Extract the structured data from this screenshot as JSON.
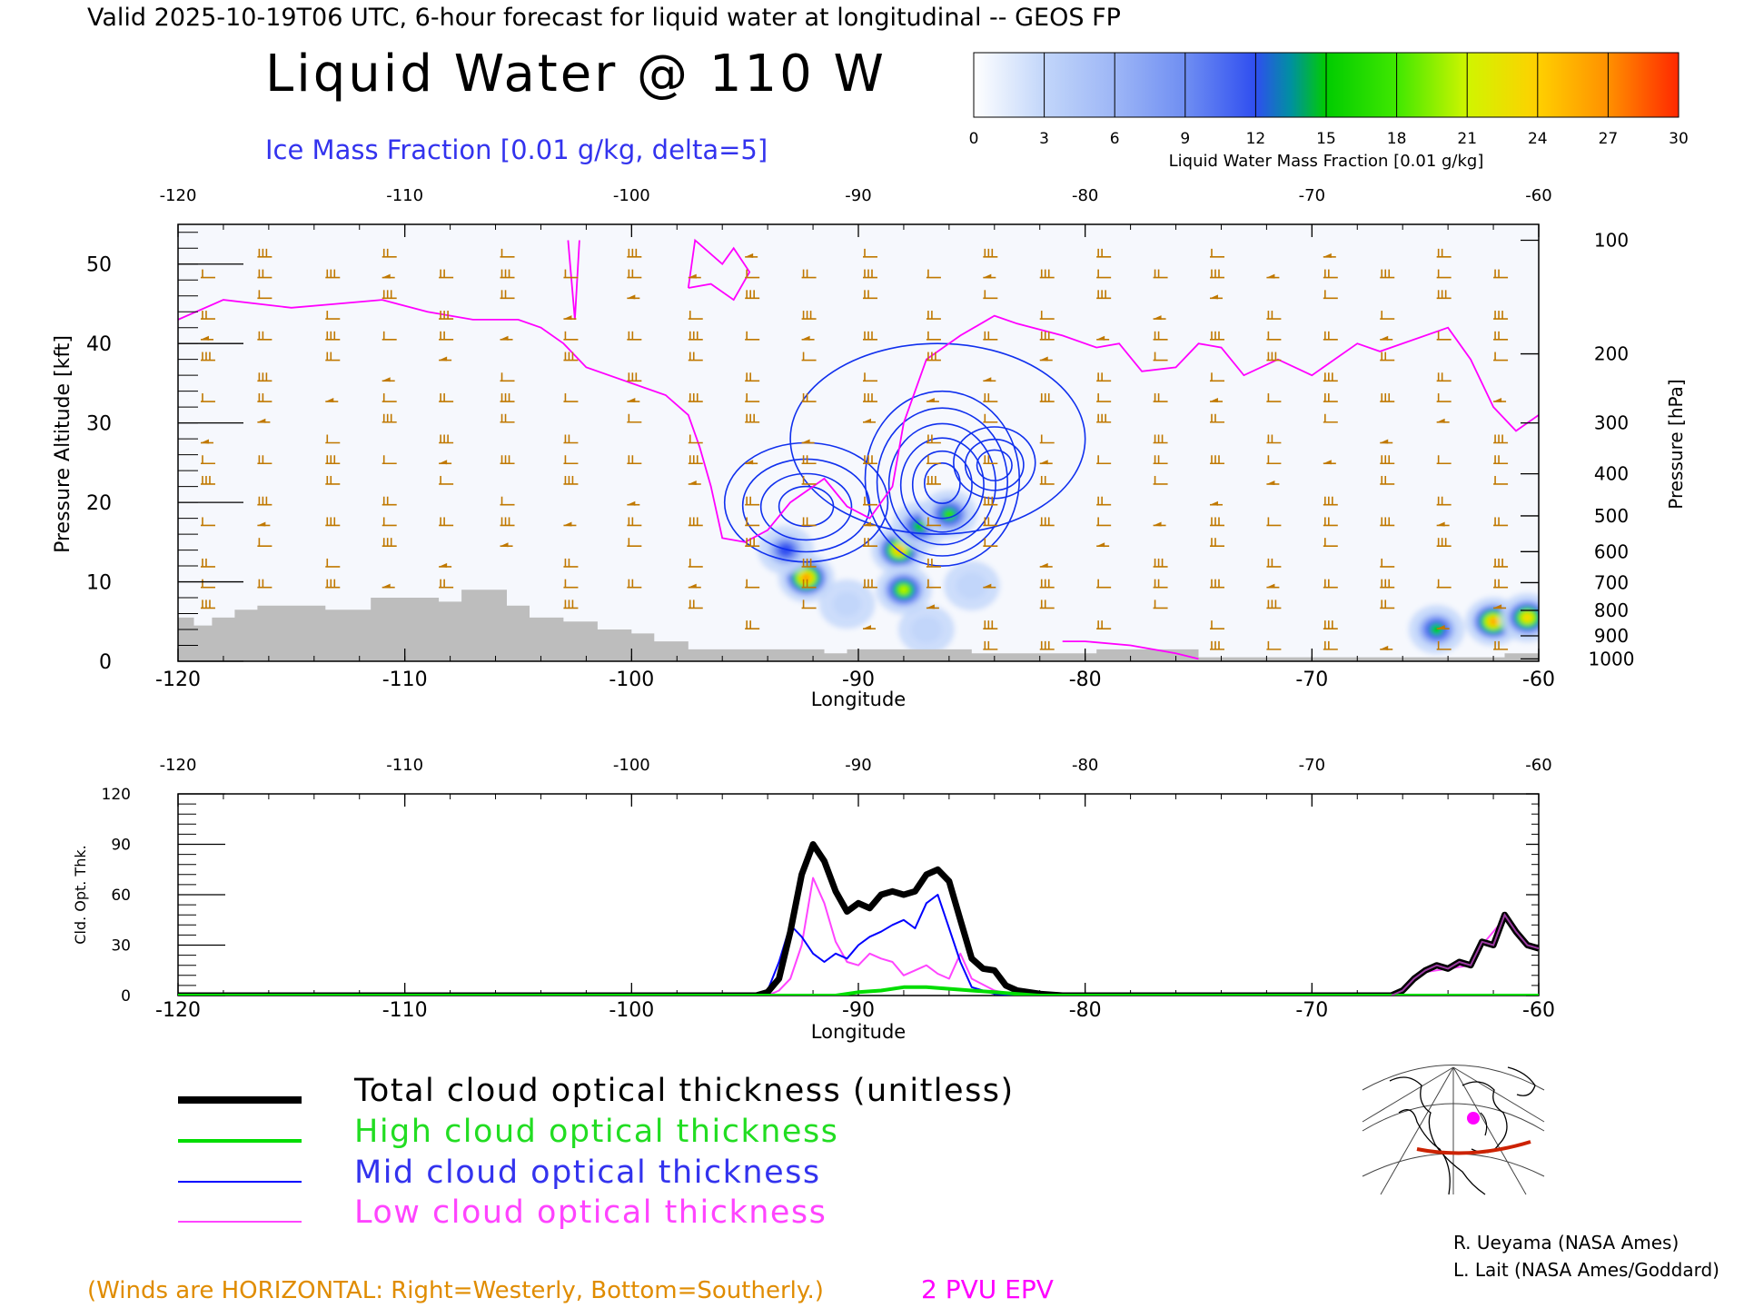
{
  "header": {
    "valid_line": "Valid 2025-10-19T06 UTC, 6-hour forecast for liquid water at longitudinal -- GEOS FP",
    "main_title": "Liquid Water @ 110 W",
    "ice_label": "Ice Mass Fraction [0.01 g/kg, delta=5]"
  },
  "colorbar": {
    "ticks": [
      "0",
      "3",
      "6",
      "9",
      "12",
      "15",
      "18",
      "21",
      "24",
      "27",
      "30"
    ],
    "label": "Liquid Water Mass Fraction [0.01 g/kg]",
    "colors": [
      "#f6f8fd",
      "#b8cff8",
      "#8aa6f3",
      "#5b78ee",
      "#2b4bf0",
      "#00a86a",
      "#00dd00",
      "#a8f000",
      "#f0f000",
      "#ffb400",
      "#ff3000"
    ]
  },
  "colors": {
    "wind_barb": "#c07800",
    "epv": "#ff00ff",
    "terrain": "#bbbbbb",
    "total": "#000000",
    "high": "#00dd00",
    "mid": "#0000ff",
    "low": "#ff44ff",
    "axis": "#000000",
    "terrain_fill": "#bdbdbd"
  },
  "chart_data": [
    {
      "type": "heatmap",
      "title": "Liquid Water @ 110 W",
      "xlabel": "Longitude",
      "ylabel": "Pressure Altitude [kft]",
      "ylabel_right": "Pressure [hPa]",
      "xlim": [
        -120,
        -60
      ],
      "ylim": [
        0,
        55
      ],
      "x_ticks": [
        "-120",
        "-110",
        "-100",
        "-90",
        "-80",
        "-70",
        "-60"
      ],
      "top_x_ticks": [
        "-120",
        "-110",
        "-100",
        "-90",
        "-80",
        "-70",
        "-60"
      ],
      "y_ticks": [
        "0",
        "10",
        "20",
        "30",
        "40",
        "50"
      ],
      "right_ticks": [
        {
          "label": "100",
          "kft": 53
        },
        {
          "label": "200",
          "kft": 38.7
        },
        {
          "label": "300",
          "kft": 30
        },
        {
          "label": "400",
          "kft": 23.6
        },
        {
          "label": "500",
          "kft": 18.3
        },
        {
          "label": "600",
          "kft": 13.8
        },
        {
          "label": "700",
          "kft": 9.9
        },
        {
          "label": "800",
          "kft": 6.4
        },
        {
          "label": "900",
          "kft": 3.2
        },
        {
          "label": "1000",
          "kft": 0.3
        }
      ],
      "liquid_water_blobs": [
        {
          "lon": -92.3,
          "kft": 10.5,
          "peak": 29
        },
        {
          "lon": -93.2,
          "kft": 14,
          "peak": 14
        },
        {
          "lon": -88.2,
          "kft": 14,
          "peak": 27
        },
        {
          "lon": -87.3,
          "kft": 17,
          "peak": 17
        },
        {
          "lon": -86,
          "kft": 18.5,
          "peak": 18
        },
        {
          "lon": -88,
          "kft": 9,
          "peak": 22
        },
        {
          "lon": -85,
          "kft": 9.5,
          "peak": 5
        },
        {
          "lon": -87,
          "kft": 4,
          "peak": 5
        },
        {
          "lon": -90.5,
          "kft": 7.2,
          "peak": 4
        },
        {
          "lon": -62,
          "kft": 5,
          "peak": 28
        },
        {
          "lon": -64.5,
          "kft": 4,
          "peak": 17
        },
        {
          "lon": -60.5,
          "kft": 5.5,
          "peak": 26
        }
      ],
      "epv_2pvu_line": [
        [
          -120,
          43
        ],
        [
          -118,
          45.5
        ],
        [
          -115,
          44.5
        ],
        [
          -113,
          45
        ],
        [
          -111,
          45.5
        ],
        [
          -109,
          44
        ],
        [
          -107,
          43
        ],
        [
          -105,
          43
        ],
        [
          -104,
          42
        ],
        [
          -103,
          40
        ],
        [
          -102,
          37
        ],
        [
          -100,
          35
        ],
        [
          -98.5,
          33.5
        ],
        [
          -97.5,
          31
        ],
        [
          -97,
          27
        ],
        [
          -96.5,
          22
        ],
        [
          -96,
          15.5
        ],
        [
          -95,
          15
        ],
        [
          -94,
          16.5
        ],
        [
          -93,
          20
        ],
        [
          -92,
          22
        ],
        [
          -91.5,
          23
        ],
        [
          -90.5,
          19.5
        ],
        [
          -89.5,
          18
        ],
        [
          -88.5,
          22
        ],
        [
          -88,
          30
        ],
        [
          -87,
          38
        ],
        [
          -85.5,
          41
        ],
        [
          -84,
          43.5
        ],
        [
          -83,
          42.5
        ],
        [
          -81,
          41
        ],
        [
          -79.5,
          39.5
        ],
        [
          -78.5,
          40
        ],
        [
          -77.5,
          36.5
        ],
        [
          -76,
          37
        ],
        [
          -75,
          40
        ],
        [
          -74,
          39.5
        ],
        [
          -73,
          36
        ],
        [
          -71.5,
          38
        ],
        [
          -70,
          36
        ],
        [
          -68,
          40
        ],
        [
          -67,
          39
        ],
        [
          -64,
          42
        ],
        [
          -63,
          38
        ],
        [
          -62,
          32
        ],
        [
          -61,
          29
        ],
        [
          -60,
          31
        ]
      ],
      "epv_lower_line": [
        [
          -81,
          2.5
        ],
        [
          -80,
          2.5
        ],
        [
          -78,
          2
        ],
        [
          -76,
          1
        ],
        [
          -75,
          0.3
        ]
      ],
      "epv_spike_line": [
        [
          -102.8,
          53
        ],
        [
          -102.5,
          43
        ],
        [
          -102.3,
          53
        ]
      ],
      "epv_loop_line": [
        [
          -97.5,
          47
        ],
        [
          -97.2,
          53
        ],
        [
          -96,
          50
        ],
        [
          -95.5,
          52
        ],
        [
          -94.8,
          49
        ],
        [
          -95.5,
          45.5
        ],
        [
          -96.5,
          47.5
        ],
        [
          -97.5,
          47
        ]
      ],
      "ice_contours": [
        {
          "lon": -92.3,
          "kft": 20,
          "rx": 3.6,
          "ry": 7.5,
          "n": 4
        },
        {
          "lon": -86.3,
          "kft": 23,
          "rx": 3.4,
          "ry": 11,
          "n": 6
        },
        {
          "lon": -84,
          "kft": 25,
          "rx": 1.8,
          "ry": 4.5,
          "n": 3
        },
        {
          "lon": -86.5,
          "kft": 28,
          "rx": 6.5,
          "ry": 12,
          "n": 1
        }
      ],
      "terrain_profile": [
        [
          -120,
          5.5
        ],
        [
          -119.3,
          5.5
        ],
        [
          -119.3,
          4.5
        ],
        [
          -118.5,
          4.5
        ],
        [
          -118.5,
          5.5
        ],
        [
          -117.5,
          5.5
        ],
        [
          -117.5,
          6.5
        ],
        [
          -116.5,
          6.5
        ],
        [
          -116.5,
          7
        ],
        [
          -113.5,
          7
        ],
        [
          -113.5,
          6.5
        ],
        [
          -111.5,
          6.5
        ],
        [
          -111.5,
          8
        ],
        [
          -108.5,
          8
        ],
        [
          -108.5,
          7.5
        ],
        [
          -107.5,
          7.5
        ],
        [
          -107.5,
          9
        ],
        [
          -105.5,
          9
        ],
        [
          -105.5,
          7
        ],
        [
          -104.5,
          7
        ],
        [
          -104.5,
          5.5
        ],
        [
          -103,
          5.5
        ],
        [
          -103,
          5
        ],
        [
          -101.5,
          5
        ],
        [
          -101.5,
          4
        ],
        [
          -100,
          4
        ],
        [
          -100,
          3.5
        ],
        [
          -99,
          3.5
        ],
        [
          -99,
          2.5
        ],
        [
          -97.5,
          2.5
        ],
        [
          -97.5,
          1.5
        ],
        [
          -91.5,
          1.5
        ],
        [
          -91.5,
          1
        ],
        [
          -90.5,
          1
        ],
        [
          -90.5,
          1.5
        ],
        [
          -85,
          1.5
        ],
        [
          -85,
          1
        ],
        [
          -79.5,
          1
        ],
        [
          -79.5,
          1.5
        ],
        [
          -75,
          1.5
        ],
        [
          -75,
          0.5
        ],
        [
          -61.5,
          0.5
        ],
        [
          -61.5,
          1
        ],
        [
          -60,
          1
        ]
      ],
      "barb_columns": [
        -119,
        -116.5,
        -113.5,
        -111,
        -108.5,
        -105.8,
        -103,
        -100.2,
        -97.5,
        -95,
        -92.5,
        -89.8,
        -87,
        -84.5,
        -82,
        -79.5,
        -77,
        -74.5,
        -72,
        -69.5,
        -67,
        -64.5,
        -62
      ]
    },
    {
      "type": "line",
      "xlabel": "Longitude",
      "ylabel": "Cld. Opt. Thk.",
      "xlim": [
        -120,
        -60
      ],
      "ylim": [
        0,
        120
      ],
      "x_ticks": [
        "-120",
        "-110",
        "-100",
        "-90",
        "-80",
        "-70",
        "-60"
      ],
      "top_x_ticks": [
        "-120",
        "-110",
        "-100",
        "-90",
        "-80",
        "-70",
        "-60"
      ],
      "y_ticks": [
        "0",
        "30",
        "60",
        "90",
        "120"
      ],
      "series": [
        {
          "name": "Total cloud optical thickness (unitless)",
          "color": "#000000",
          "width": 7,
          "points": [
            [
              -120,
              0
            ],
            [
              -94.5,
              0
            ],
            [
              -94,
              2
            ],
            [
              -93.5,
              10
            ],
            [
              -93,
              38
            ],
            [
              -92.5,
              72
            ],
            [
              -92,
              90
            ],
            [
              -91.5,
              80
            ],
            [
              -91,
              62
            ],
            [
              -90.5,
              50
            ],
            [
              -90,
              55
            ],
            [
              -89.5,
              52
            ],
            [
              -89,
              60
            ],
            [
              -88.5,
              62
            ],
            [
              -88,
              60
            ],
            [
              -87.5,
              62
            ],
            [
              -87,
              72
            ],
            [
              -86.5,
              75
            ],
            [
              -86,
              68
            ],
            [
              -85.5,
              45
            ],
            [
              -85,
              22
            ],
            [
              -84.5,
              16
            ],
            [
              -84,
              15
            ],
            [
              -83.5,
              6
            ],
            [
              -83,
              3
            ],
            [
              -82,
              1
            ],
            [
              -81,
              0
            ],
            [
              -66.5,
              0
            ],
            [
              -66,
              3
            ],
            [
              -65.5,
              10
            ],
            [
              -65,
              15
            ],
            [
              -64.5,
              18
            ],
            [
              -64,
              16
            ],
            [
              -63.5,
              20
            ],
            [
              -63,
              18
            ],
            [
              -62.5,
              32
            ],
            [
              -62,
              30
            ],
            [
              -61.5,
              48
            ],
            [
              -61,
              38
            ],
            [
              -60.5,
              30
            ],
            [
              -60,
              28
            ]
          ]
        },
        {
          "name": "High cloud optical thickness",
          "color": "#00dd00",
          "width": 4,
          "points": [
            [
              -120,
              0
            ],
            [
              -91,
              0
            ],
            [
              -90,
              2
            ],
            [
              -89,
              3
            ],
            [
              -88,
              5
            ],
            [
              -87,
              5
            ],
            [
              -86,
              4
            ],
            [
              -85,
              3
            ],
            [
              -84,
              2
            ],
            [
              -83,
              1
            ],
            [
              -82,
              0
            ],
            [
              -60,
              0
            ]
          ]
        },
        {
          "name": "Mid cloud optical thickness",
          "color": "#0000ff",
          "width": 2,
          "points": [
            [
              -120,
              0
            ],
            [
              -94.5,
              0
            ],
            [
              -94,
              3
            ],
            [
              -93.5,
              20
            ],
            [
              -93,
              42
            ],
            [
              -92.5,
              35
            ],
            [
              -92,
              25
            ],
            [
              -91.5,
              20
            ],
            [
              -91,
              25
            ],
            [
              -90.5,
              22
            ],
            [
              -90,
              30
            ],
            [
              -89.5,
              35
            ],
            [
              -89,
              38
            ],
            [
              -88.5,
              42
            ],
            [
              -88,
              45
            ],
            [
              -87.5,
              40
            ],
            [
              -87,
              55
            ],
            [
              -86.5,
              60
            ],
            [
              -86,
              40
            ],
            [
              -85.5,
              20
            ],
            [
              -85,
              5
            ],
            [
              -84,
              1
            ],
            [
              -83,
              0
            ],
            [
              -60,
              0
            ]
          ]
        },
        {
          "name": "Low cloud optical thickness",
          "color": "#ff44ff",
          "width": 2,
          "points": [
            [
              -120,
              0
            ],
            [
              -94,
              0
            ],
            [
              -93.5,
              3
            ],
            [
              -93,
              10
            ],
            [
              -92.5,
              30
            ],
            [
              -92,
              70
            ],
            [
              -91.5,
              55
            ],
            [
              -91,
              32
            ],
            [
              -90.5,
              20
            ],
            [
              -90,
              18
            ],
            [
              -89.5,
              25
            ],
            [
              -89,
              22
            ],
            [
              -88.5,
              20
            ],
            [
              -88,
              12
            ],
            [
              -87.5,
              15
            ],
            [
              -87,
              18
            ],
            [
              -86.5,
              13
            ],
            [
              -86,
              10
            ],
            [
              -85.5,
              25
            ],
            [
              -85,
              10
            ],
            [
              -84,
              3
            ],
            [
              -83,
              0
            ],
            [
              -66.5,
              0
            ],
            [
              -66,
              3
            ],
            [
              -65,
              14
            ],
            [
              -64,
              16
            ],
            [
              -63,
              18
            ],
            [
              -62.5,
              30
            ],
            [
              -61.5,
              46
            ],
            [
              -61,
              38
            ],
            [
              -60.5,
              30
            ],
            [
              -60,
              28
            ]
          ]
        }
      ]
    }
  ],
  "legend": {
    "total": "Total cloud optical thickness (unitless)",
    "high": "High cloud optical thickness",
    "mid": "Mid cloud optical thickness",
    "low": "Low cloud optical thickness"
  },
  "footer": {
    "winds_note": "(Winds are HORIZONTAL: Right=Westerly, Bottom=Southerly.)",
    "epv_label": "2 PVU EPV",
    "credit1": "R. Ueyama (NASA Ames)",
    "credit2": "L. Lait (NASA Ames/Goddard)"
  },
  "inset_map": {
    "marker_color": "#ff00ff",
    "track_color": "#cc2200"
  }
}
